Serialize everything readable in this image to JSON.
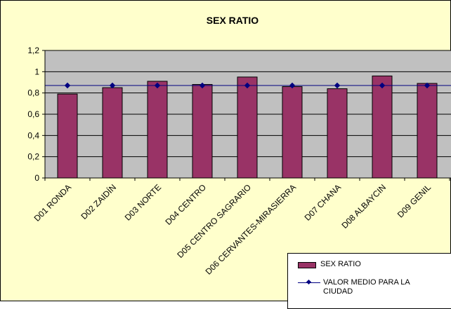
{
  "chart_data": {
    "type": "bar",
    "title": "SEX RATIO",
    "xlabel": "",
    "ylabel": "",
    "ylim": [
      0,
      1.2
    ],
    "yticks": [
      "0",
      "0,2",
      "0,4",
      "0,6",
      "0,8",
      "1",
      "1,2"
    ],
    "categories": [
      "D01 RONDA",
      "D02 ZAIDÍN",
      "D03 NORTE",
      "D04 CENTRO",
      "D05 CENTRO SAGRARIO",
      "D06 CERVANTES-MIRASIERRA",
      "D07 CHANA",
      "D08 ALBAYCIN",
      "D09 GENIL"
    ],
    "series": [
      {
        "name": "SEX RATIO",
        "kind": "bar",
        "color": "#993366",
        "values": [
          0.79,
          0.85,
          0.91,
          0.88,
          0.95,
          0.86,
          0.84,
          0.96,
          0.89
        ]
      },
      {
        "name": "VALOR MEDIO PARA LA CIUDAD",
        "kind": "line",
        "color": "#000080",
        "values": [
          0.87,
          0.87,
          0.87,
          0.87,
          0.87,
          0.87,
          0.87,
          0.87,
          0.87
        ]
      }
    ],
    "grid": true,
    "legend_position": "bottom-right",
    "colors": {
      "chart_background": "#FFFFCC",
      "plot_background": "#C0C0C0"
    }
  }
}
